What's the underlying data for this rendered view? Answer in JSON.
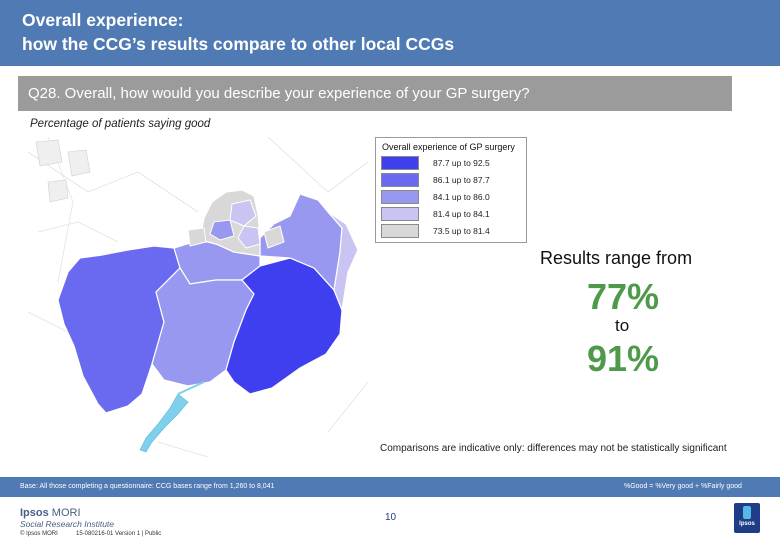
{
  "header": {
    "title_line1": "Overall experience:",
    "title_line2": "how the CCG’s results compare to other local CCGs"
  },
  "question": "Q28. Overall, how would you describe your experience of your GP surgery?",
  "subtitle": "Percentage of patients saying good",
  "legend": {
    "title": "Overall experience of GP surgery",
    "items": [
      {
        "label": "87.7 up to 92.5",
        "color": "#3f3ff0"
      },
      {
        "label": "86.1 up to 87.7",
        "color": "#6a6af0"
      },
      {
        "label": "84.1 up to 86.0",
        "color": "#9898f0"
      },
      {
        "label": "81.4 up to 84.1",
        "color": "#c9c4f2"
      },
      {
        "label": "73.5 up to 81.4",
        "color": "#d8d8d8"
      }
    ]
  },
  "results": {
    "range_from": "Results range from",
    "low": "77%",
    "to": "to",
    "high": "91%"
  },
  "caveat": "Comparisons are indicative only: differences may not be statistically significant",
  "footer": {
    "base": "Base: All those completing a questionnaire: CCG bases range from 1,260 to 8,041",
    "good_definition": "%Good = %Very good + %Fairly good",
    "logo_main_bold": "Ipsos",
    "logo_main_rest": " MORI",
    "logo_sub": "Social Research Institute",
    "copyright": "© Ipsos MORI",
    "version": "15-080216-01 Version 1 | Public",
    "page_number": "10",
    "corner_logo_text": "Ipsos"
  }
}
